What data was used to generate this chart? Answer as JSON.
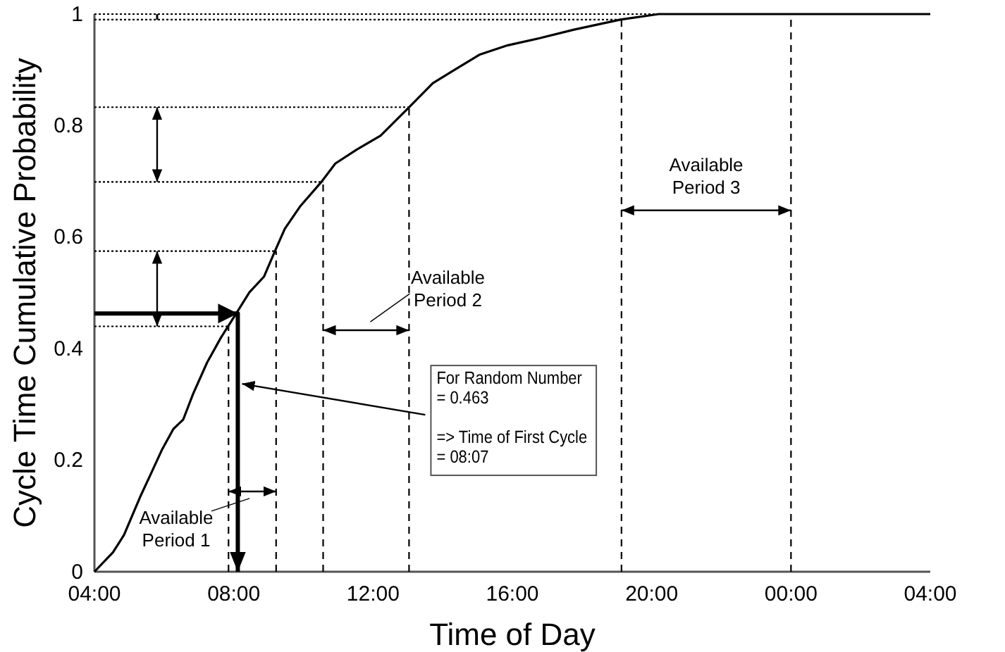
{
  "chart_data": {
    "type": "line",
    "xlabel": "Time of Day",
    "ylabel": "Cycle Time Cumulative Probability",
    "xlim": [
      "2000-01-01T04:00",
      "2000-01-02T04:00"
    ],
    "xticks": [
      {
        "value": "2000-01-01T04:00",
        "label": "04:00"
      },
      {
        "value": "2000-01-01T08:00",
        "label": "08:00"
      },
      {
        "value": "2000-01-01T12:00",
        "label": "12:00"
      },
      {
        "value": "2000-01-01T16:00",
        "label": "16:00"
      },
      {
        "value": "2000-01-01T20:00",
        "label": "20:00"
      },
      {
        "value": "2000-01-02T00:00",
        "label": "00:00"
      },
      {
        "value": "2000-01-02T04:00",
        "label": "04:00"
      }
    ],
    "ylim": [
      0,
      1
    ],
    "yticks": [
      0,
      0.2,
      0.4,
      0.6,
      0.8,
      1
    ],
    "grid": false,
    "marker": "none",
    "series": [
      {
        "color": "#000000",
        "line_style": "solid",
        "x": [
          "2000-01-01T04:00",
          "2000-01-01T04:32",
          "2000-01-01T04:51",
          "2000-01-01T05:20",
          "2000-01-01T05:37",
          "2000-01-01T05:56",
          "2000-01-01T06:16",
          "2000-01-01T06:33",
          "2000-01-01T06:50",
          "2000-01-01T07:14",
          "2000-01-01T07:38",
          "2000-01-01T08:03",
          "2000-01-01T08:27",
          "2000-01-01T08:52",
          "2000-01-01T09:11",
          "2000-01-01T09:28",
          "2000-01-01T09:55",
          "2000-01-01T10:31",
          "2000-01-01T10:55",
          "2000-01-01T11:32",
          "2000-01-01T12:13",
          "2000-01-01T13:02",
          "2000-01-01T13:43",
          "2000-01-01T14:22",
          "2000-01-01T15:03",
          "2000-01-01T15:52",
          "2000-01-01T16:48",
          "2000-01-01T17:46",
          "2000-01-01T19:06",
          "2000-01-01T20:12",
          "2000-01-02T04:00"
        ],
        "values": [
          0,
          0.035,
          0.066,
          0.137,
          0.175,
          0.218,
          0.256,
          0.273,
          0.319,
          0.375,
          0.42,
          0.461,
          0.501,
          0.529,
          0.575,
          0.615,
          0.656,
          0.699,
          0.732,
          0.757,
          0.782,
          0.833,
          0.876,
          0.901,
          0.927,
          0.944,
          0.957,
          0.972,
          0.99,
          1,
          1
        ]
      },
      {
        "color": "#000000",
        "line_style": "dotted",
        "x": [
          "2000-01-01T04:00",
          "2000-01-01T07:51"
        ],
        "values": [
          0.44,
          0.44
        ]
      },
      {
        "color": "#000000",
        "line_style": "dotted",
        "x": [
          "2000-01-01T04:00",
          "2000-01-01T09:13"
        ],
        "values": [
          0.575,
          0.575
        ]
      },
      {
        "color": "#000000",
        "line_style": "dotted",
        "x": [
          "2000-01-01T04:00",
          "2000-01-01T10:34"
        ],
        "values": [
          0.699,
          0.699
        ]
      },
      {
        "color": "#000000",
        "line_style": "dotted",
        "x": [
          "2000-01-01T04:00",
          "2000-01-01T13:02"
        ],
        "values": [
          0.833,
          0.833
        ]
      },
      {
        "color": "#000000",
        "line_style": "dotted",
        "x": [
          "2000-01-01T04:00",
          "2000-01-01T19:08"
        ],
        "values": [
          0.99,
          0.99
        ]
      },
      {
        "color": "#000000",
        "line_style": "dotted",
        "x": [
          "2000-01-01T04:00",
          "2000-01-02T00:00"
        ],
        "values": [
          1,
          1
        ]
      },
      {
        "color": "#000000",
        "line_style": "dashed",
        "x": [
          "2000-01-01T07:51",
          "2000-01-01T07:51"
        ],
        "values": [
          0,
          0.44
        ]
      },
      {
        "color": "#000000",
        "line_style": "dashed",
        "x": [
          "2000-01-01T09:13",
          "2000-01-01T09:13"
        ],
        "values": [
          0,
          0.575
        ]
      },
      {
        "color": "#000000",
        "line_style": "dashed",
        "x": [
          "2000-01-01T10:34",
          "2000-01-01T10:34"
        ],
        "values": [
          0,
          0.699
        ]
      },
      {
        "color": "#000000",
        "line_style": "dashed",
        "x": [
          "2000-01-01T13:02",
          "2000-01-01T13:02"
        ],
        "values": [
          0,
          0.833
        ]
      },
      {
        "color": "#000000",
        "line_style": "dashed",
        "x": [
          "2000-01-01T19:08",
          "2000-01-01T19:08"
        ],
        "values": [
          0,
          0.99
        ]
      },
      {
        "color": "#000000",
        "line_style": "dashed",
        "x": [
          "2000-01-02T00:00",
          "2000-01-02T00:00"
        ],
        "values": [
          0,
          1
        ]
      },
      {
        "color": "#000000",
        "line_style": "solid",
        "x": [
          "2000-01-01T04:00",
          "2000-01-01T08:07",
          "2000-01-01T08:07"
        ],
        "values": [
          0.463,
          0.463,
          0
        ]
      }
    ],
    "annotations": [
      "Available\nPeriod 1",
      "Available\nPeriod 2",
      "Available\nPeriod 3",
      {
        "text": "For Random Number\n= 0.463\n\n=> Time of First Cycle\n= 08:07",
        "x": "2000-01-01T08:07",
        "y": 0.337
      }
    ]
  }
}
